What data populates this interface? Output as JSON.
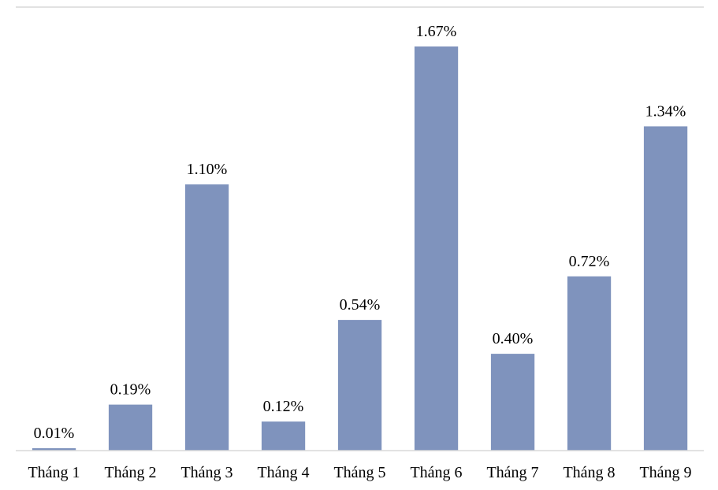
{
  "chart_data": {
    "type": "bar",
    "categories": [
      "Tháng 1",
      "Tháng 2",
      "Tháng 3",
      "Tháng 4",
      "Tháng 5",
      "Tháng 6",
      "Tháng 7",
      "Tháng 8",
      "Tháng 9"
    ],
    "values": [
      0.01,
      0.19,
      1.1,
      0.12,
      0.54,
      1.67,
      0.4,
      0.72,
      1.34
    ],
    "data_labels": [
      "0.01%",
      "0.19%",
      "1.10%",
      "0.12%",
      "0.54%",
      "1.67%",
      "0.40%",
      "0.72%",
      "1.34%"
    ],
    "unit": "%",
    "ylim": [
      0,
      1.8
    ],
    "grid": false,
    "legend": "none",
    "colors": {
      "bar": "#7f93bd",
      "axis": "#d9d9d9",
      "text": "#000000"
    }
  }
}
